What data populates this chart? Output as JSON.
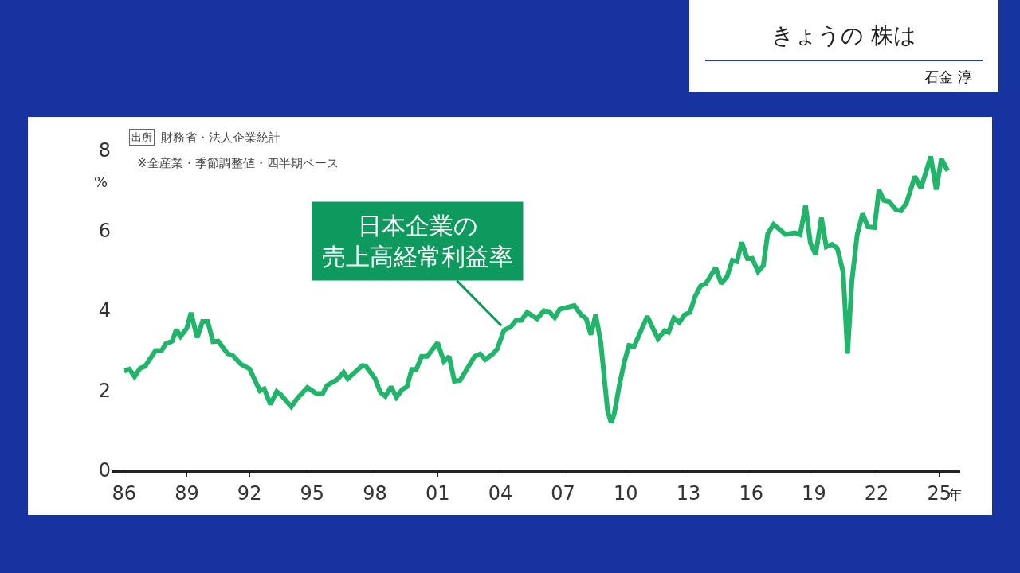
{
  "chart_data": {
    "type": "line",
    "subtitle": "きょうの 株は",
    "ylabel": "%",
    "xlabel": "年",
    "annotations": [
      {
        "text": "日本企業の売上高経常利益率",
        "x": 2004.05,
        "y": 3.62
      },
      "出所",
      "財務省・法人企業統計",
      "※全産業・季節調整値・四半期ベース",
      "石金 淳"
    ],
    "x": [
      1986.0,
      1986.25,
      1986.5,
      1986.76,
      1987.0,
      1987.5,
      1987.8,
      1988.0,
      1988.3,
      1988.5,
      1988.7,
      1989.0,
      1989.2,
      1989.5,
      1989.75,
      1990.0,
      1990.25,
      1990.5,
      1990.95,
      1991.2,
      1991.6,
      1992.0,
      1992.5,
      1992.7,
      1993.0,
      1993.3,
      1993.5,
      1994.0,
      1994.3,
      1994.77,
      1995.2,
      1995.5,
      1995.7,
      1996.2,
      1996.5,
      1996.7,
      1997.4,
      1997.56,
      1998.0,
      1998.26,
      1998.5,
      1998.77,
      1999.03,
      1999.3,
      1999.53,
      1999.76,
      1999.98,
      2000.23,
      2000.5,
      2001.0,
      2001.3,
      2001.55,
      2001.8,
      2002.07,
      2002.77,
      2003.03,
      2003.28,
      2003.6,
      2003.85,
      2004.17,
      2004.5,
      2004.75,
      2005.0,
      2005.28,
      2005.76,
      2006.08,
      2006.33,
      2006.6,
      2006.84,
      2007.54,
      2007.86,
      2008.11,
      2008.33,
      2008.56,
      2008.8,
      2009.13,
      2009.3,
      2009.45,
      2009.7,
      2009.95,
      2010.15,
      2010.4,
      2011.03,
      2011.54,
      2011.86,
      2012.05,
      2012.3,
      2012.56,
      2012.81,
      2013.07,
      2013.32,
      2013.58,
      2013.83,
      2014.3,
      2014.57,
      2014.85,
      2015.1,
      2015.32,
      2015.55,
      2015.82,
      2016.05,
      2016.33,
      2016.58,
      2016.79,
      2017.07,
      2017.64,
      2018.09,
      2018.34,
      2018.6,
      2018.83,
      2019.08,
      2019.36,
      2019.59,
      2019.87,
      2020.12,
      2020.4,
      2020.61,
      2020.82,
      2021.07,
      2021.33,
      2021.58,
      2021.9,
      2022.11,
      2022.35,
      2022.6,
      2022.92,
      2023.17,
      2023.43,
      2023.83,
      2024.12,
      2024.59,
      2024.85,
      2025.1,
      2025.4
    ],
    "series": [
      {
        "color": "#22b46a",
        "values": [
          2.48,
          2.53,
          2.34,
          2.55,
          2.6,
          2.99,
          3.0,
          3.17,
          3.23,
          3.52,
          3.35,
          3.55,
          3.94,
          3.32,
          3.72,
          3.72,
          3.22,
          3.23,
          2.92,
          2.87,
          2.65,
          2.54,
          1.99,
          2.04,
          1.65,
          1.97,
          1.89,
          1.59,
          1.81,
          2.07,
          1.92,
          1.92,
          2.12,
          2.27,
          2.45,
          2.29,
          2.62,
          2.61,
          2.3,
          1.95,
          1.85,
          2.09,
          1.83,
          2.02,
          2.09,
          2.52,
          2.52,
          2.85,
          2.85,
          3.19,
          2.72,
          2.85,
          2.23,
          2.25,
          2.85,
          2.91,
          2.77,
          2.89,
          3.03,
          3.5,
          3.59,
          3.75,
          3.75,
          3.95,
          3.79,
          3.99,
          3.97,
          3.82,
          4.03,
          4.12,
          3.89,
          3.79,
          3.39,
          3.89,
          3.22,
          1.49,
          1.19,
          1.42,
          2.15,
          2.75,
          3.12,
          3.1,
          3.85,
          3.29,
          3.49,
          3.45,
          3.81,
          3.7,
          3.89,
          3.95,
          4.35,
          4.61,
          4.67,
          5.07,
          4.67,
          4.85,
          5.25,
          5.22,
          5.7,
          5.29,
          5.3,
          4.97,
          5.12,
          5.92,
          6.15,
          5.9,
          5.94,
          5.89,
          6.62,
          5.69,
          5.39,
          6.32,
          5.59,
          5.65,
          5.55,
          4.95,
          2.92,
          4.75,
          5.89,
          6.42,
          6.09,
          6.07,
          7.01,
          6.75,
          6.72,
          6.52,
          6.49,
          6.69,
          7.35,
          7.05,
          7.85,
          7.02,
          7.79,
          7.49
        ]
      }
    ],
    "xlim": [
      1985.4,
      2026.0
    ],
    "xticks": [
      {
        "value": 1986,
        "label": "86"
      },
      {
        "value": 1989,
        "label": "89"
      },
      {
        "value": 1992,
        "label": "92"
      },
      {
        "value": 1995,
        "label": "95"
      },
      {
        "value": 1998,
        "label": "98"
      },
      {
        "value": 2001,
        "label": "01"
      },
      {
        "value": 2004,
        "label": "04"
      },
      {
        "value": 2007,
        "label": "07"
      },
      {
        "value": 2010,
        "label": "10"
      },
      {
        "value": 2013,
        "label": "13"
      },
      {
        "value": 2016,
        "label": "16"
      },
      {
        "value": 2019,
        "label": "19"
      },
      {
        "value": 2022,
        "label": "22"
      },
      {
        "value": 2025,
        "label": "25"
      }
    ],
    "ylim": [
      0,
      8
    ],
    "yticks": [
      0,
      2,
      4,
      6,
      8
    ],
    "line_style": "solid",
    "marker": "none"
  }
}
